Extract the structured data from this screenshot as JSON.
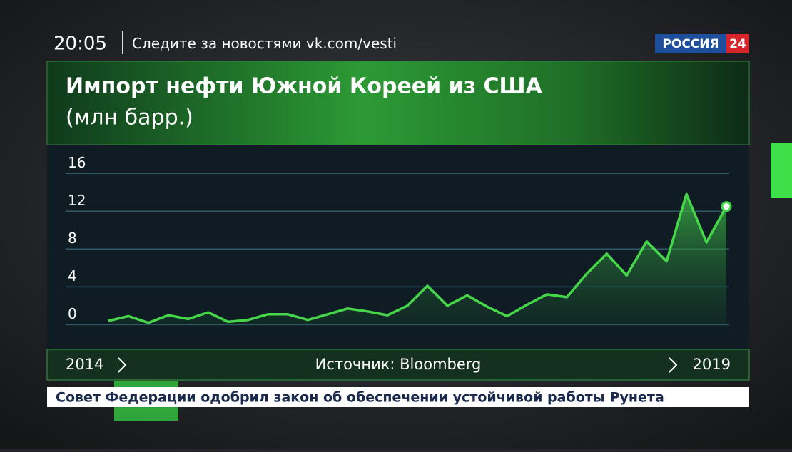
{
  "overlay": {
    "time": "20:05",
    "follow": "Следите за новостями",
    "url": "vk.com/vesti",
    "channel": "РОССИЯ",
    "channel_number": "24",
    "ticker": "Совет Федерации одобрил закон об обеспечении устойчивой работы Рунета"
  },
  "chart_data": {
    "type": "line",
    "title": "Импорт нефти Южной Кореей из США",
    "subtitle": "(млн барр.)",
    "source": "Источник: Bloomberg",
    "x_start_label": "2014",
    "x_end_label": "2019",
    "categories": [
      null,
      null,
      null,
      null,
      null,
      null,
      null,
      null,
      null,
      null,
      null,
      null,
      null,
      null,
      null,
      null,
      null,
      null,
      null,
      null,
      null,
      null,
      null,
      null,
      null,
      null,
      null,
      null,
      null,
      null,
      null,
      null
    ],
    "values": [
      0.4,
      0.9,
      0.2,
      1.0,
      0.6,
      1.3,
      0.3,
      0.5,
      1.1,
      1.1,
      0.5,
      1.1,
      1.7,
      1.4,
      1.0,
      2.0,
      4.1,
      2.0,
      3.1,
      1.9,
      0.9,
      2.1,
      3.2,
      2.9,
      5.4,
      7.5,
      5.2,
      8.8,
      6.7,
      13.8,
      8.7,
      12.5
    ],
    "color": "#46d64a",
    "ylim": [
      -0.2,
      17
    ],
    "yticks": [
      0,
      4,
      8,
      12,
      16
    ],
    "grid": true
  }
}
